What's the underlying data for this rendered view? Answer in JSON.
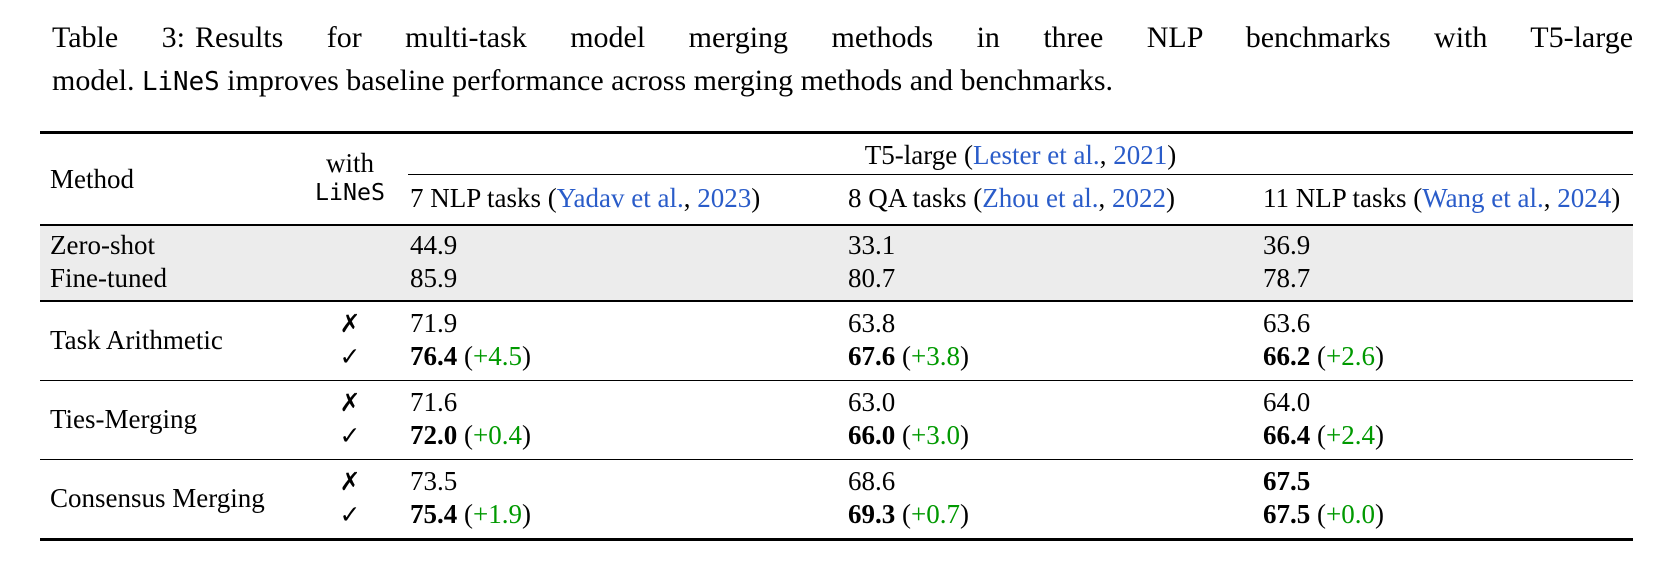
{
  "colors": {
    "link_blue": "#2a5cc9",
    "delta_green": "#009900",
    "row_shade": "#ececec"
  },
  "symbols": {
    "open": "(",
    "close": ")"
  },
  "marks": {
    "without": "✗",
    "with": "✓"
  },
  "caption": {
    "label": "Table 3:",
    "line1": "Results for multi-task model merging methods in three NLP benchmarks with T5-large",
    "line2_pre": "model.",
    "code": "LiNeS",
    "line2_post": "improves baseline performance across merging methods and benchmarks."
  },
  "header": {
    "method": "Method",
    "with_line1": "with",
    "with_line2": "LiNeS",
    "group": {
      "pre": "T5-large (",
      "cite": "Lester et al.",
      "sep": ", ",
      "year": "2021",
      "post": ")"
    },
    "columns": [
      {
        "pre": "7 NLP tasks (",
        "cite": "Yadav et al.",
        "sep": ", ",
        "year": "2023",
        "post": ")"
      },
      {
        "pre": "8 QA tasks (",
        "cite": "Zhou et al.",
        "sep": ", ",
        "year": "2022",
        "post": ")"
      },
      {
        "pre": "11 NLP tasks (",
        "cite": "Wang et al.",
        "sep": ", ",
        "year": "2024",
        "post": ")"
      }
    ]
  },
  "baseline_rows": [
    {
      "method": "Zero-shot",
      "values": [
        "44.9",
        "33.1",
        "36.9"
      ]
    },
    {
      "method": "Fine-tuned",
      "values": [
        "85.9",
        "80.7",
        "78.7"
      ]
    }
  ],
  "groups": [
    {
      "method": "Task Arithmetic",
      "without": {
        "cells": [
          {
            "value": "71.9",
            "bold": false
          },
          {
            "value": "63.8",
            "bold": false
          },
          {
            "value": "63.6",
            "bold": false
          }
        ]
      },
      "with": {
        "cells": [
          {
            "value": "76.4",
            "delta": "+4.5"
          },
          {
            "value": "67.6",
            "delta": "+3.8"
          },
          {
            "value": "66.2",
            "delta": "+2.6"
          }
        ]
      }
    },
    {
      "method": "Ties-Merging",
      "without": {
        "cells": [
          {
            "value": "71.6",
            "bold": false
          },
          {
            "value": "63.0",
            "bold": false
          },
          {
            "value": "64.0",
            "bold": false
          }
        ]
      },
      "with": {
        "cells": [
          {
            "value": "72.0",
            "delta": "+0.4"
          },
          {
            "value": "66.0",
            "delta": "+3.0"
          },
          {
            "value": "66.4",
            "delta": "+2.4"
          }
        ]
      }
    },
    {
      "method": "Consensus Merging",
      "without": {
        "cells": [
          {
            "value": "73.5",
            "bold": false
          },
          {
            "value": "68.6",
            "bold": false
          },
          {
            "value": "67.5",
            "bold": true
          }
        ]
      },
      "with": {
        "cells": [
          {
            "value": "75.4",
            "delta": "+1.9"
          },
          {
            "value": "69.3",
            "delta": "+0.7"
          },
          {
            "value": "67.5",
            "delta": "+0.0"
          }
        ]
      }
    }
  ]
}
